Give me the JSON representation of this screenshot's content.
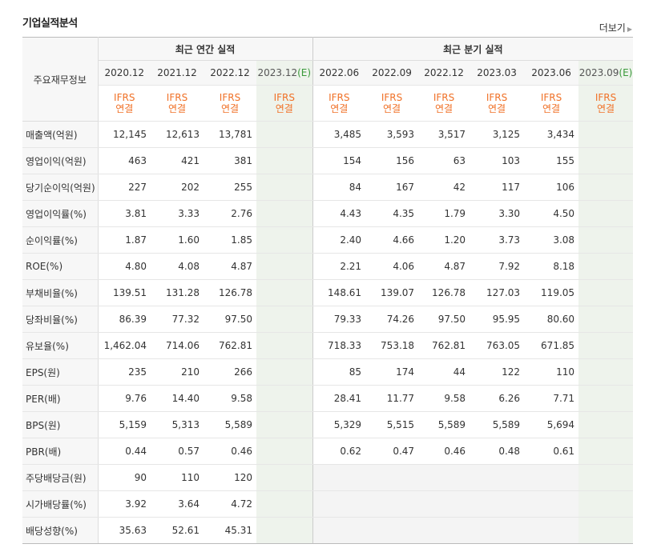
{
  "title": "기업실적분석",
  "more_label": "더보기",
  "row_header": "주요재무정보",
  "group_annual": "최근 연간 실적",
  "group_quarter": "최근 분기 실적",
  "periods": [
    {
      "label": "2020.12",
      "estimate": ""
    },
    {
      "label": "2021.12",
      "estimate": ""
    },
    {
      "label": "2022.12",
      "estimate": ""
    },
    {
      "label": "2023.12",
      "estimate": "(E)"
    },
    {
      "label": "2022.06",
      "estimate": ""
    },
    {
      "label": "2022.09",
      "estimate": ""
    },
    {
      "label": "2022.12",
      "estimate": ""
    },
    {
      "label": "2023.03",
      "estimate": ""
    },
    {
      "label": "2023.06",
      "estimate": ""
    },
    {
      "label": "2023.09",
      "estimate": "(E)"
    }
  ],
  "ifrs_label": "IFRS",
  "consol_label": "연결",
  "rows": [
    {
      "label": "매출액(억원)",
      "values": [
        "12,145",
        "12,613",
        "13,781",
        "",
        "3,485",
        "3,593",
        "3,517",
        "3,125",
        "3,434",
        ""
      ]
    },
    {
      "label": "영업이익(억원)",
      "values": [
        "463",
        "421",
        "381",
        "",
        "154",
        "156",
        "63",
        "103",
        "155",
        ""
      ]
    },
    {
      "label": "당기순이익(억원)",
      "values": [
        "227",
        "202",
        "255",
        "",
        "84",
        "167",
        "42",
        "117",
        "106",
        ""
      ]
    },
    {
      "label": "영업이익률(%)",
      "values": [
        "3.81",
        "3.33",
        "2.76",
        "",
        "4.43",
        "4.35",
        "1.79",
        "3.30",
        "4.50",
        ""
      ]
    },
    {
      "label": "순이익률(%)",
      "values": [
        "1.87",
        "1.60",
        "1.85",
        "",
        "2.40",
        "4.66",
        "1.20",
        "3.73",
        "3.08",
        ""
      ]
    },
    {
      "label": "ROE(%)",
      "values": [
        "4.80",
        "4.08",
        "4.87",
        "",
        "2.21",
        "4.06",
        "4.87",
        "7.92",
        "8.18",
        ""
      ]
    },
    {
      "label": "부채비율(%)",
      "values": [
        "139.51",
        "131.28",
        "126.78",
        "",
        "148.61",
        "139.07",
        "126.78",
        "127.03",
        "119.05",
        ""
      ]
    },
    {
      "label": "당좌비율(%)",
      "values": [
        "86.39",
        "77.32",
        "97.50",
        "",
        "79.33",
        "74.26",
        "97.50",
        "95.95",
        "80.60",
        ""
      ]
    },
    {
      "label": "유보율(%)",
      "values": [
        "1,462.04",
        "714.06",
        "762.81",
        "",
        "718.33",
        "753.18",
        "762.81",
        "763.05",
        "671.85",
        ""
      ]
    },
    {
      "label": "EPS(원)",
      "values": [
        "235",
        "210",
        "266",
        "",
        "85",
        "174",
        "44",
        "122",
        "110",
        ""
      ]
    },
    {
      "label": "PER(배)",
      "values": [
        "9.76",
        "14.40",
        "9.58",
        "",
        "28.41",
        "11.77",
        "9.58",
        "6.26",
        "7.71",
        ""
      ]
    },
    {
      "label": "BPS(원)",
      "values": [
        "5,159",
        "5,313",
        "5,589",
        "",
        "5,329",
        "5,515",
        "5,589",
        "5,589",
        "5,694",
        ""
      ]
    },
    {
      "label": "PBR(배)",
      "values": [
        "0.44",
        "0.57",
        "0.46",
        "",
        "0.62",
        "0.47",
        "0.46",
        "0.48",
        "0.61",
        ""
      ]
    },
    {
      "label": "주당배당금(원)",
      "values": [
        "90",
        "110",
        "120",
        "",
        "",
        "",
        "",
        "",
        "",
        ""
      ]
    },
    {
      "label": "시가배당률(%)",
      "values": [
        "3.92",
        "3.64",
        "4.72",
        "",
        "",
        "",
        "",
        "",
        "",
        ""
      ]
    },
    {
      "label": "배당성향(%)",
      "values": [
        "35.63",
        "52.61",
        "45.31",
        "",
        "",
        "",
        "",
        "",
        "",
        ""
      ]
    }
  ]
}
